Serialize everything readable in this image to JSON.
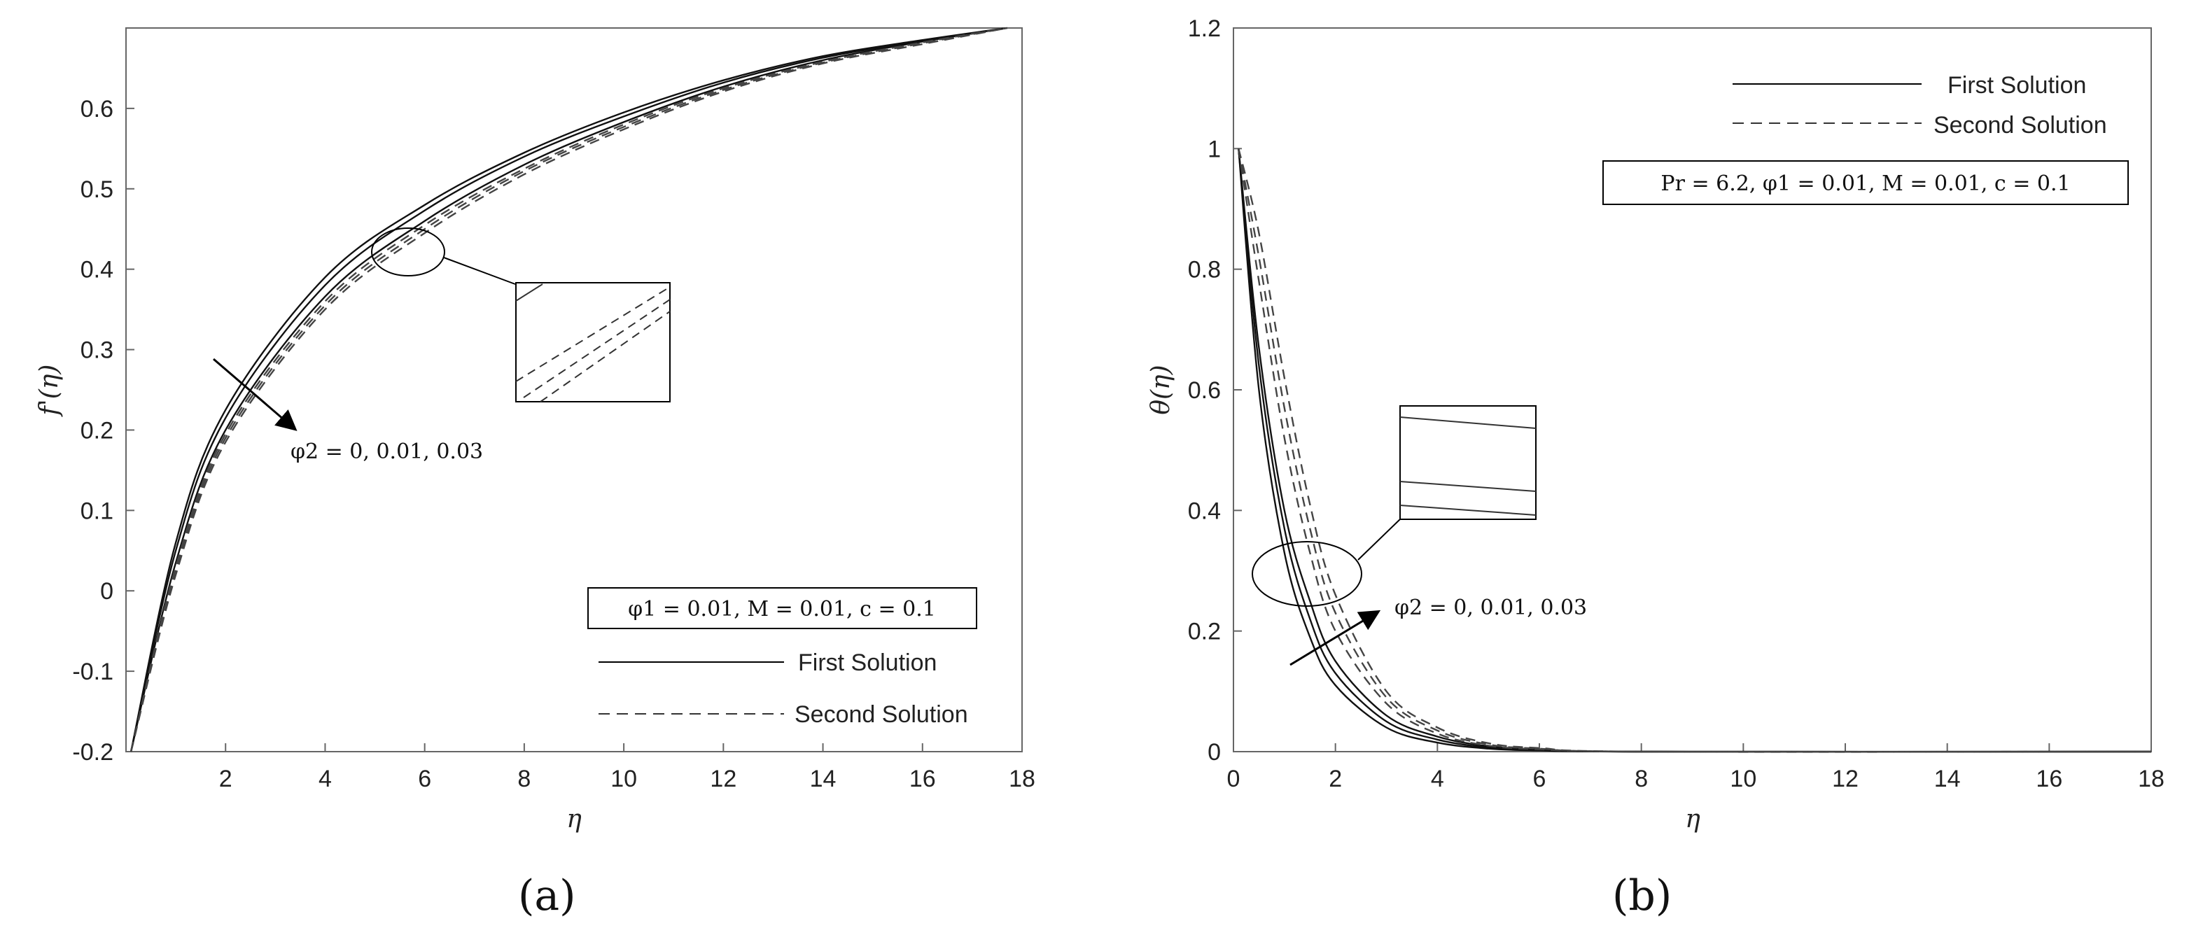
{
  "chart_data": [
    {
      "type": "line",
      "panel_label": "(a)",
      "ylabel": "f'(η)",
      "xlabel": "η",
      "xlim": [
        0,
        18
      ],
      "ylim": [
        -0.2,
        0.7
      ],
      "x_ticks": [
        "2",
        "4",
        "6",
        "8",
        "10",
        "12",
        "14",
        "16",
        "18"
      ],
      "y_ticks": [
        "-0.2",
        "-0.1",
        "0",
        "0.1",
        "0.2",
        "0.3",
        "0.4",
        "0.5",
        "0.6"
      ],
      "grid": false,
      "legend_position": "bottom-right",
      "legend": {
        "first": "First Solution",
        "second": "Second Solution"
      },
      "parameter_box": "φ1 = 0.01, M = 0.01, c = 0.1",
      "arrow_label": "φ2 = 0, 0.01, 0.03",
      "series": [
        {
          "solution": "first",
          "phi2": 0,
          "x": [
            0.1,
            1,
            2,
            4,
            6,
            8,
            10,
            12,
            14,
            16,
            17.7
          ],
          "values": [
            -0.2,
            0.06,
            0.225,
            0.39,
            0.48,
            0.545,
            0.595,
            0.635,
            0.665,
            0.685,
            0.7
          ]
        },
        {
          "solution": "first",
          "phi2": 0.01,
          "x": [
            0.1,
            1,
            2,
            4,
            6,
            8,
            10,
            12,
            14,
            16,
            17.7
          ],
          "values": [
            -0.2,
            0.05,
            0.215,
            0.38,
            0.473,
            0.54,
            0.59,
            0.632,
            0.663,
            0.684,
            0.7
          ]
        },
        {
          "solution": "first",
          "phi2": 0.03,
          "x": [
            0.1,
            1,
            2,
            4,
            6,
            8,
            10,
            12,
            14,
            16,
            17.7
          ],
          "values": [
            -0.2,
            0.035,
            0.2,
            0.366,
            0.46,
            0.53,
            0.583,
            0.627,
            0.66,
            0.683,
            0.7
          ]
        },
        {
          "solution": "second",
          "phi2": 0,
          "x": [
            0.1,
            1,
            2,
            4,
            6,
            8,
            10,
            12,
            14,
            16,
            17.7
          ],
          "values": [
            -0.2,
            0.03,
            0.195,
            0.36,
            0.455,
            0.525,
            0.58,
            0.625,
            0.658,
            0.682,
            0.7
          ]
        },
        {
          "solution": "second",
          "phi2": 0.01,
          "x": [
            0.1,
            1,
            2,
            4,
            6,
            8,
            10,
            12,
            14,
            16,
            17.7
          ],
          "values": [
            -0.2,
            0.025,
            0.19,
            0.355,
            0.45,
            0.522,
            0.577,
            0.623,
            0.657,
            0.681,
            0.7
          ]
        },
        {
          "solution": "second",
          "phi2": 0.03,
          "x": [
            0.1,
            1,
            2,
            4,
            6,
            8,
            10,
            12,
            14,
            16,
            17.7
          ],
          "values": [
            -0.2,
            0.02,
            0.185,
            0.35,
            0.445,
            0.518,
            0.574,
            0.621,
            0.656,
            0.68,
            0.7
          ]
        }
      ]
    },
    {
      "type": "line",
      "panel_label": "(b)",
      "ylabel": "θ(η)",
      "xlabel": "η",
      "xlim": [
        0,
        18
      ],
      "ylim": [
        0,
        1.2
      ],
      "x_ticks": [
        "0",
        "2",
        "4",
        "6",
        "8",
        "10",
        "12",
        "14",
        "16",
        "18"
      ],
      "y_ticks": [
        "0",
        "0.2",
        "0.4",
        "0.6",
        "0.8",
        "1",
        "1.2"
      ],
      "grid": false,
      "legend_position": "top-right",
      "legend": {
        "first": "First Solution",
        "second": "Second Solution"
      },
      "parameter_box": "Pr = 6.2, φ1 = 0.01, M = 0.01, c = 0.1",
      "arrow_label": "φ2 = 0, 0.01, 0.03",
      "series": [
        {
          "solution": "first",
          "phi2": 0,
          "x": [
            0.1,
            0.5,
            1,
            1.5,
            2,
            3,
            4,
            5,
            6,
            8,
            18
          ],
          "values": [
            1.0,
            0.6,
            0.33,
            0.19,
            0.11,
            0.04,
            0.015,
            0.005,
            0.002,
            0,
            0
          ]
        },
        {
          "solution": "first",
          "phi2": 0.01,
          "x": [
            0.1,
            0.5,
            1,
            1.5,
            2,
            3,
            4,
            5,
            6,
            8,
            18
          ],
          "values": [
            1.0,
            0.64,
            0.37,
            0.22,
            0.13,
            0.05,
            0.02,
            0.007,
            0.003,
            0,
            0
          ]
        },
        {
          "solution": "first",
          "phi2": 0.03,
          "x": [
            0.1,
            0.5,
            1,
            1.5,
            2,
            3,
            4,
            5,
            6,
            8,
            18
          ],
          "values": [
            1.0,
            0.67,
            0.4,
            0.25,
            0.15,
            0.06,
            0.025,
            0.009,
            0.004,
            0,
            0
          ]
        },
        {
          "solution": "second",
          "phi2": 0,
          "x": [
            0.1,
            0.5,
            1,
            1.5,
            2,
            3,
            4,
            5,
            6,
            8,
            18
          ],
          "values": [
            1.0,
            0.78,
            0.52,
            0.33,
            0.2,
            0.08,
            0.03,
            0.01,
            0.004,
            0,
            0
          ]
        },
        {
          "solution": "second",
          "phi2": 0.01,
          "x": [
            0.1,
            0.5,
            1,
            1.5,
            2,
            3,
            4,
            5,
            6,
            8,
            18
          ],
          "values": [
            1.0,
            0.82,
            0.57,
            0.37,
            0.23,
            0.09,
            0.035,
            0.012,
            0.005,
            0,
            0
          ]
        },
        {
          "solution": "second",
          "phi2": 0.03,
          "x": [
            0.1,
            0.5,
            1,
            1.5,
            2,
            3,
            4,
            5,
            6,
            8,
            18
          ],
          "values": [
            1.0,
            0.86,
            0.62,
            0.41,
            0.26,
            0.1,
            0.04,
            0.014,
            0.006,
            0,
            0
          ]
        }
      ]
    }
  ]
}
